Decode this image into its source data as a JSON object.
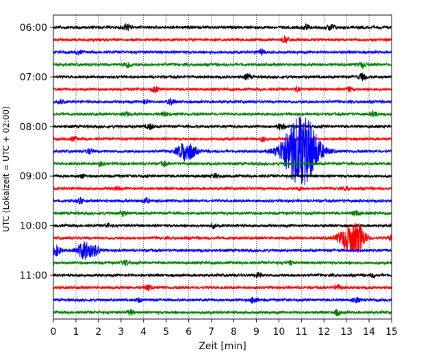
{
  "chart_data": {
    "type": "line",
    "title": "",
    "xlabel": "Zeit  [min]",
    "ylabel": "UTC (Lokalzeit = UTC + 02:00)",
    "xlim": [
      0,
      15
    ],
    "x_ticks": [
      0,
      1,
      2,
      3,
      4,
      5,
      6,
      7,
      8,
      9,
      10,
      11,
      12,
      13,
      14,
      15
    ],
    "x_tick_labels": [
      "0",
      "1",
      "2",
      "3",
      "4",
      "5",
      "6",
      "7",
      "8",
      "9",
      "10",
      "11",
      "12",
      "13",
      "14",
      "15"
    ],
    "y_tick_labels": [
      "06:00",
      "07:00",
      "08:00",
      "09:00",
      "10:00",
      "11:00"
    ],
    "y_tick_rows": [
      0,
      4,
      8,
      12,
      16,
      20
    ],
    "row_minutes": 15,
    "vertical_grid": "dotted",
    "legend": "none",
    "trace_colors": [
      "#000000",
      "#ff0000",
      "#0000ff",
      "#008000"
    ],
    "rows": [
      {
        "color": "#000000",
        "events": [
          [
            3.25,
            0.5
          ],
          [
            11.2,
            0.4
          ],
          [
            12.3,
            0.5
          ]
        ]
      },
      {
        "color": "#ff0000",
        "events": [
          [
            10.3,
            0.5
          ]
        ]
      },
      {
        "color": "#0000ff",
        "events": [
          [
            1.1,
            0.3
          ],
          [
            9.2,
            0.4
          ]
        ]
      },
      {
        "color": "#008000",
        "events": [
          [
            3.3,
            0.5
          ],
          [
            13.7,
            0.4
          ]
        ]
      },
      {
        "color": "#000000",
        "events": [
          [
            8.6,
            0.4
          ],
          [
            13.7,
            0.5
          ]
        ]
      },
      {
        "color": "#ff0000",
        "events": [
          [
            4.5,
            0.4
          ],
          [
            10.8,
            0.3
          ],
          [
            13.1,
            0.4
          ]
        ]
      },
      {
        "color": "#0000ff",
        "events": [
          [
            0.35,
            0.3
          ],
          [
            4.1,
            0.3
          ],
          [
            5.2,
            0.4
          ]
        ]
      },
      {
        "color": "#008000",
        "events": [
          [
            3.2,
            0.4
          ],
          [
            4.9,
            0.3
          ],
          [
            14.2,
            0.4
          ]
        ]
      },
      {
        "color": "#000000",
        "events": [
          [
            4.3,
            0.4
          ],
          [
            10.1,
            0.5
          ]
        ]
      },
      {
        "color": "#ff0000",
        "events": [
          [
            0.9,
            0.3
          ],
          [
            9.3,
            0.3
          ]
        ]
      },
      {
        "color": "#0000ff",
        "events": [
          [
            1.6,
            0.4
          ],
          [
            5.9,
            1.6
          ],
          [
            10.6,
            2.0
          ],
          [
            11.0,
            3.6
          ],
          [
            11.3,
            1.8
          ]
        ]
      },
      {
        "color": "#008000",
        "events": [
          [
            2.1,
            0.3
          ],
          [
            4.9,
            0.3
          ]
        ]
      },
      {
        "color": "#000000",
        "events": [
          [
            1.3,
            0.3
          ],
          [
            7.2,
            0.3
          ]
        ]
      },
      {
        "color": "#ff0000",
        "events": [
          [
            2.8,
            0.3
          ],
          [
            10.9,
            0.3
          ],
          [
            13.0,
            0.3
          ]
        ]
      },
      {
        "color": "#0000ff",
        "events": [
          [
            1.2,
            0.4
          ],
          [
            4.1,
            0.4
          ]
        ]
      },
      {
        "color": "#008000",
        "events": [
          [
            3.1,
            0.4
          ],
          [
            13.4,
            0.4
          ]
        ]
      },
      {
        "color": "#000000",
        "events": [
          [
            2.4,
            0.3
          ],
          [
            7.1,
            0.3
          ]
        ]
      },
      {
        "color": "#ff0000",
        "events": [
          [
            13.2,
            2.2
          ],
          [
            13.6,
            0.9
          ],
          [
            15.0,
            0.4
          ]
        ]
      },
      {
        "color": "#0000ff",
        "events": [
          [
            0.1,
            0.8
          ],
          [
            1.4,
            1.4
          ],
          [
            1.9,
            0.6
          ]
        ]
      },
      {
        "color": "#008000",
        "events": [
          [
            3.2,
            0.4
          ],
          [
            10.5,
            0.3
          ]
        ]
      },
      {
        "color": "#000000",
        "events": [
          [
            9.1,
            0.4
          ],
          [
            14.2,
            0.3
          ]
        ]
      },
      {
        "color": "#ff0000",
        "events": [
          [
            4.2,
            0.4
          ],
          [
            12.6,
            0.4
          ]
        ]
      },
      {
        "color": "#0000ff",
        "events": [
          [
            3.8,
            0.3
          ],
          [
            8.9,
            0.5
          ],
          [
            13.4,
            0.4
          ]
        ]
      },
      {
        "color": "#008000",
        "events": [
          [
            3.4,
            0.4
          ],
          [
            12.6,
            0.4
          ]
        ]
      }
    ]
  }
}
